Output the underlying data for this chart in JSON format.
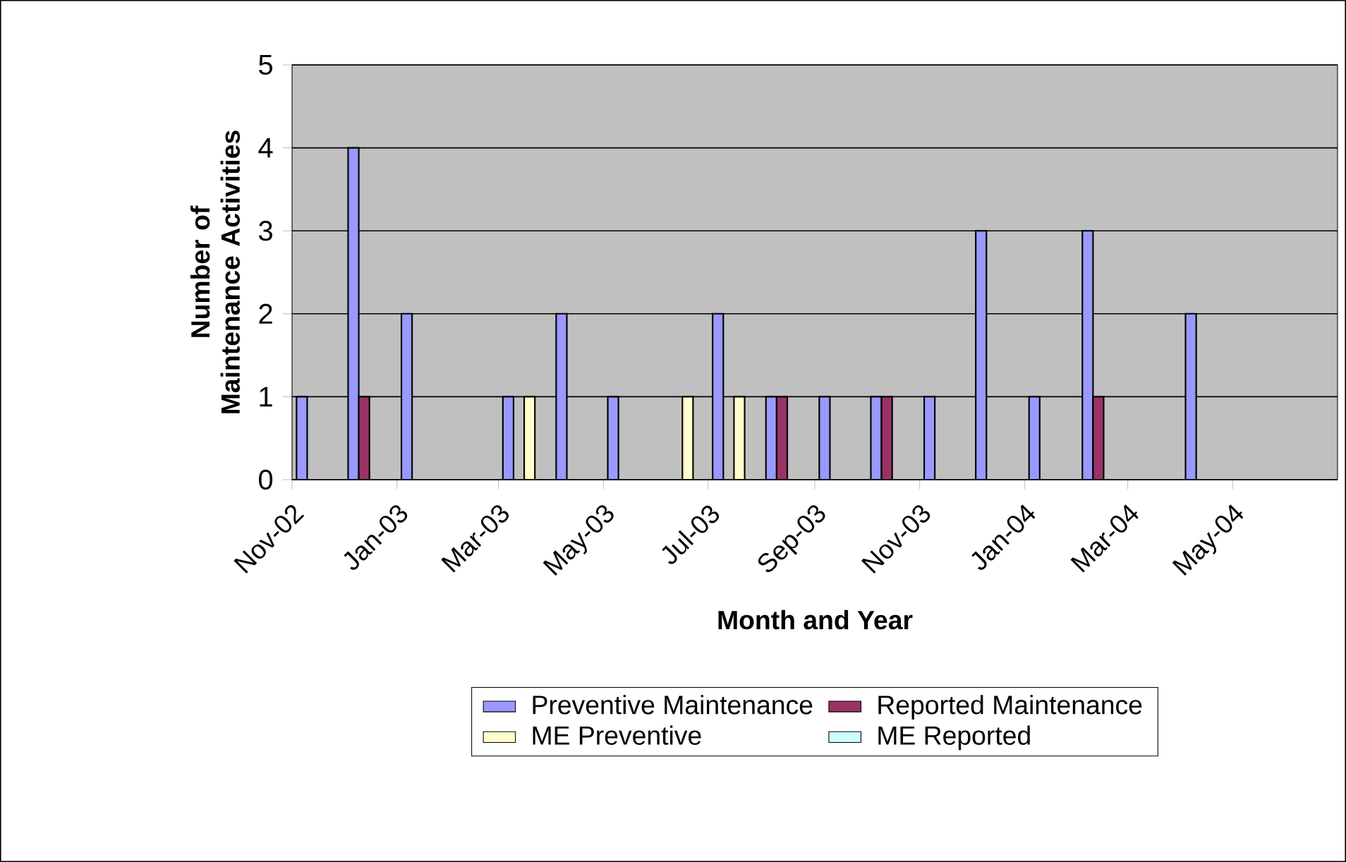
{
  "chart_data": {
    "type": "bar",
    "xlabel": "Month and Year",
    "ylabel": "Number of Maintenance Activities",
    "x": [
      "2002-11-16",
      "2002-12-16",
      "2003-01-16",
      "2003-02-16",
      "2003-03-16",
      "2003-04-16",
      "2003-05-16",
      "2003-06-16",
      "2003-07-16",
      "2003-08-16",
      "2003-09-16",
      "2003-10-16",
      "2003-11-16",
      "2003-12-16",
      "2004-01-16",
      "2004-02-16",
      "2004-03-16",
      "2004-04-16"
    ],
    "series": [
      {
        "name": "Preventive Maintenance",
        "color": "#9999ff",
        "values": [
          1,
          4,
          2,
          null,
          1,
          2,
          1,
          null,
          2,
          1,
          1,
          1,
          1,
          3,
          1,
          3,
          null,
          2
        ]
      },
      {
        "name": "Reported Maintenance",
        "color": "#993366",
        "values": [
          null,
          1,
          null,
          null,
          null,
          null,
          null,
          null,
          null,
          1,
          null,
          1,
          null,
          null,
          null,
          1,
          null,
          null
        ]
      },
      {
        "name": "ME Preventive",
        "color": "#ffffcc",
        "values": [
          null,
          null,
          null,
          null,
          1,
          null,
          null,
          1,
          1,
          null,
          null,
          null,
          null,
          null,
          null,
          null,
          null,
          null
        ]
      },
      {
        "name": "ME Reported",
        "color": "#ccffff",
        "values": [
          null,
          null,
          null,
          null,
          null,
          null,
          null,
          null,
          null,
          null,
          null,
          null,
          null,
          null,
          null,
          null,
          null,
          null
        ]
      }
    ],
    "xlim": [
      "2002-11-01",
      "2004-07-01"
    ],
    "xticks": [
      {
        "value": "2002-11-01",
        "label": "Nov-02"
      },
      {
        "value": "2003-01-01",
        "label": "Jan-03"
      },
      {
        "value": "2003-03-01",
        "label": "Mar-03"
      },
      {
        "value": "2003-05-01",
        "label": "May-03"
      },
      {
        "value": "2003-07-01",
        "label": "Jul-03"
      },
      {
        "value": "2003-09-01",
        "label": "Sep-03"
      },
      {
        "value": "2003-11-01",
        "label": "Nov-03"
      },
      {
        "value": "2004-01-01",
        "label": "Jan-04"
      },
      {
        "value": "2004-03-01",
        "label": "Mar-04"
      },
      {
        "value": "2004-05-01",
        "label": "May-04"
      }
    ],
    "ylim": [
      0,
      5
    ],
    "yticks": [
      0,
      1,
      2,
      3,
      4,
      5
    ],
    "grid": "y",
    "legend": "bottom"
  }
}
